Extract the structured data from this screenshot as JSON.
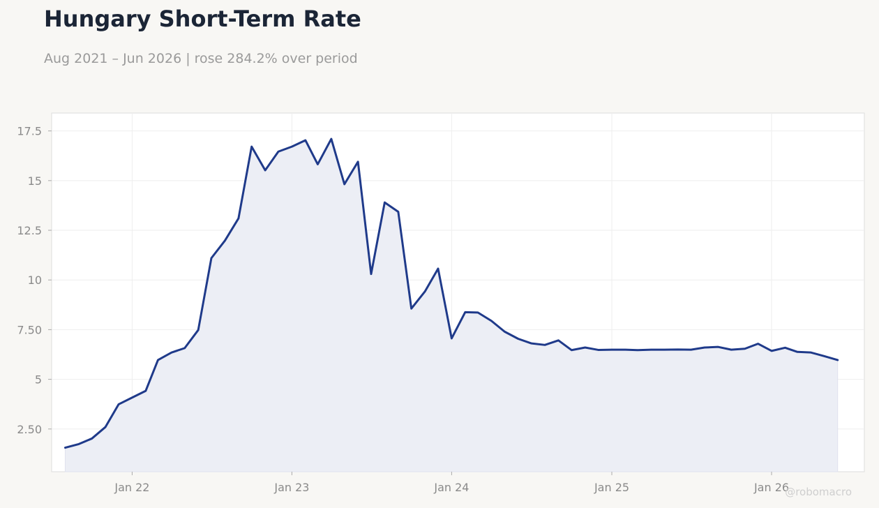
{
  "title": "Hungary Short-Term Rate",
  "subtitle": "Aug 2021 – Jun 2026 | rose 284.2% over period",
  "watermark": "@robomacro",
  "colors": {
    "line": "#1f3a8a",
    "fill": "#eceef5",
    "background": "#f8f7f4",
    "plot_background": "#ffffff",
    "grid": "#eeeeee",
    "text": "#1b2536",
    "muted": "#9a9a9a"
  },
  "chart_data": {
    "type": "area",
    "grid": true,
    "x_ticks": [
      {
        "date": "2022-01-01",
        "label": "Jan 22"
      },
      {
        "date": "2023-01-01",
        "label": "Jan 23"
      },
      {
        "date": "2024-01-01",
        "label": "Jan 24"
      },
      {
        "date": "2025-01-01",
        "label": "Jan 25"
      },
      {
        "date": "2026-01-01",
        "label": "Jan 26"
      }
    ],
    "y_ticks": [
      {
        "value": 2.5,
        "label": "2.50"
      },
      {
        "value": 5,
        "label": "5"
      },
      {
        "value": 7.5,
        "label": "7.50"
      },
      {
        "value": 10,
        "label": "10"
      },
      {
        "value": 12.5,
        "label": "12.5"
      },
      {
        "value": 15,
        "label": "15"
      },
      {
        "value": 17.5,
        "label": "17.5"
      }
    ],
    "xlim": [
      "2021-07-01",
      "2026-08-01"
    ],
    "ylim": [
      0.35,
      18.4
    ],
    "x": [
      "2021-08-01",
      "2021-09-01",
      "2021-10-01",
      "2021-11-01",
      "2021-12-01",
      "2022-01-01",
      "2022-02-01",
      "2022-03-01",
      "2022-04-01",
      "2022-05-01",
      "2022-06-01",
      "2022-07-01",
      "2022-08-01",
      "2022-09-01",
      "2022-10-01",
      "2022-11-01",
      "2022-12-01",
      "2023-01-01",
      "2023-02-01",
      "2023-03-01",
      "2023-04-01",
      "2023-05-01",
      "2023-06-01",
      "2023-07-01",
      "2023-08-01",
      "2023-09-01",
      "2023-10-01",
      "2023-11-01",
      "2023-12-01",
      "2024-01-01",
      "2024-02-01",
      "2024-03-01",
      "2024-04-01",
      "2024-05-01",
      "2024-06-01",
      "2024-07-01",
      "2024-08-01",
      "2024-09-01",
      "2024-10-01",
      "2024-11-01",
      "2024-12-01",
      "2025-01-01",
      "2025-02-01",
      "2025-03-01",
      "2025-04-01",
      "2025-05-01",
      "2025-06-01",
      "2025-07-01",
      "2025-08-01",
      "2025-09-01",
      "2025-10-01",
      "2025-11-01",
      "2025-12-01",
      "2026-01-01",
      "2026-02-01",
      "2026-03-01",
      "2026-04-01",
      "2026-05-01",
      "2026-06-01"
    ],
    "series": [
      {
        "values": [
          1.56,
          1.74,
          2.02,
          2.6,
          3.74,
          4.08,
          4.42,
          5.97,
          6.35,
          6.57,
          7.48,
          11.1,
          11.98,
          13.1,
          16.71,
          15.52,
          16.46,
          16.71,
          17.03,
          15.82,
          17.1,
          14.82,
          15.95,
          10.3,
          13.9,
          13.43,
          8.56,
          9.42,
          10.57,
          7.06,
          8.38,
          8.36,
          7.94,
          7.4,
          7.04,
          6.81,
          6.73,
          6.96,
          6.47,
          6.6,
          6.48,
          6.49,
          6.49,
          6.47,
          6.49,
          6.49,
          6.5,
          6.49,
          6.6,
          6.63,
          6.49,
          6.54,
          6.79,
          6.43,
          6.59,
          6.38,
          6.35,
          6.17,
          5.97
        ]
      }
    ]
  }
}
